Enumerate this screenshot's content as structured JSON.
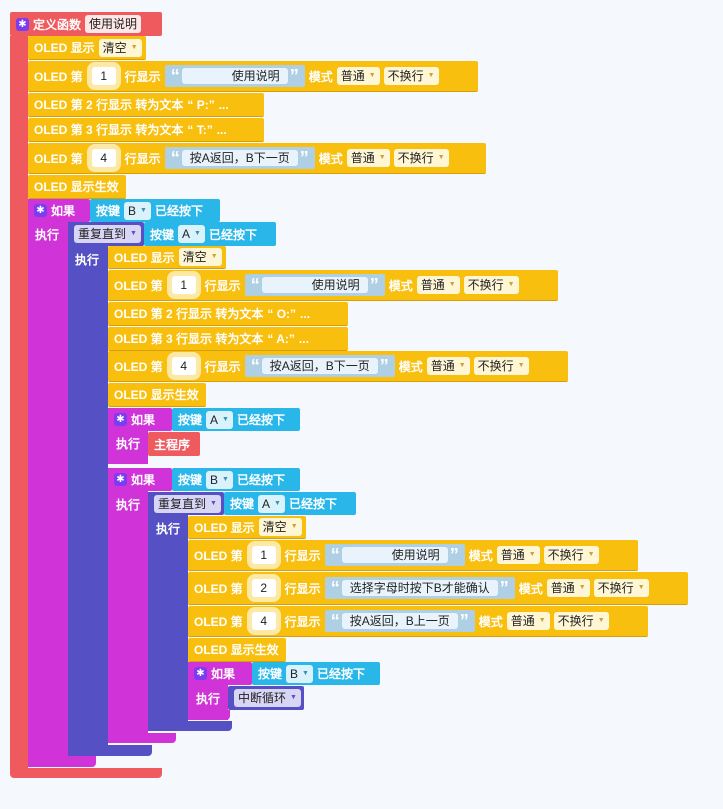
{
  "func": {
    "define": "定义函数",
    "name": "使用说明"
  },
  "w": {
    "oled_show": "OLED 显示",
    "oled_di": "OLED 第",
    "row_show": "行显示",
    "mode": "模式",
    "show_apply": "OLED 显示生效",
    "if": "如果",
    "exec": "执行",
    "repeat_until": "重复直到",
    "key": "按键",
    "pressed": "已经按下",
    "clear": "清空",
    "normal": "普通",
    "no_wrap": "不换行",
    "main_prog": "主程序",
    "break_loop": "中断循环",
    "ellipsis": "..."
  },
  "blocks": {
    "l1_str": "使用说明",
    "l1_row": "1",
    "l2_text": "OLED 第 2 行显示 转为文本",
    "l2_str": "“ P:”",
    "l3_text": "OLED 第 3 行显示 转为文本",
    "l3_str": "“ T:”",
    "l4_row": "4",
    "l4_str": "按A返回，B下一页",
    "if1_key": "B",
    "rep1_key": "A",
    "i_l1_row": "1",
    "i_l1_str": "使用说明",
    "i_l2_str": "“ O:”",
    "i_l3_str": "“ A:”",
    "i_l4_row": "4",
    "i_l4_str": "按A返回，B下一页",
    "if2_key": "A",
    "if3_key": "B",
    "rep2_key": "A",
    "j_l1_row": "1",
    "j_l1_str": "使用说明",
    "j_l2_row": "2",
    "j_l2_str": "选择字母时按下B才能确认",
    "j_l4_row": "4",
    "j_l4_str": "按A返回，B上一页",
    "if4_key": "B"
  },
  "colors": {
    "function": "#ef5a5f",
    "oled": "#f9bf0e",
    "if": "#d034d8",
    "repeat": "#5551c4",
    "key": "#29b7ea"
  },
  "icons": {
    "gear": "gear-icon",
    "dropdown": "dropdown-arrow-icon"
  }
}
